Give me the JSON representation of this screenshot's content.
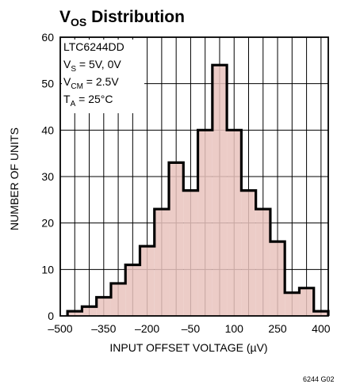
{
  "chart_data": {
    "type": "bar",
    "title": {
      "main": "V",
      "sub": "OS",
      "rest": " Distribution"
    },
    "xlabel": "INPUT OFFSET VOLTAGE (µV)",
    "ylabel": "NUMBER OF UNITS",
    "xlim": [
      -500,
      425
    ],
    "ylim": [
      0,
      60
    ],
    "grid": true,
    "x_ticks": [
      -500,
      -350,
      -200,
      -50,
      100,
      250,
      400
    ],
    "x_tick_labels": [
      "–500",
      "–350",
      "–200",
      "–50",
      "100",
      "250",
      "400"
    ],
    "y_ticks": [
      0,
      10,
      20,
      30,
      40,
      50,
      60
    ],
    "y_tick_labels": [
      "0",
      "10",
      "20",
      "30",
      "40",
      "50",
      "60"
    ],
    "bin_width": 50,
    "bins": [
      {
        "start": -475,
        "value": 1
      },
      {
        "start": -425,
        "value": 2
      },
      {
        "start": -375,
        "value": 4
      },
      {
        "start": -325,
        "value": 7
      },
      {
        "start": -275,
        "value": 11
      },
      {
        "start": -225,
        "value": 15
      },
      {
        "start": -175,
        "value": 23
      },
      {
        "start": -125,
        "value": 33
      },
      {
        "start": -75,
        "value": 27
      },
      {
        "start": -25,
        "value": 40
      },
      {
        "start": 25,
        "value": 54
      },
      {
        "start": 75,
        "value": 40
      },
      {
        "start": 125,
        "value": 27
      },
      {
        "start": 175,
        "value": 23
      },
      {
        "start": 225,
        "value": 16
      },
      {
        "start": 275,
        "value": 5
      },
      {
        "start": 325,
        "value": 6
      },
      {
        "start": 375,
        "value": 1
      }
    ],
    "annotation": [
      {
        "main": "LTC6244DD",
        "sub": "",
        "rest": ""
      },
      {
        "main": "V",
        "sub": "S",
        "rest": " = 5V, 0V"
      },
      {
        "main": "V",
        "sub": "CM",
        "rest": " = 2.5V"
      },
      {
        "main": "T",
        "sub": "A",
        "rest": " = 25°C"
      }
    ],
    "colors": {
      "fill": "#e9c3bd",
      "outline": "#000000",
      "grid": "#000000"
    }
  },
  "figure_code": "6244 G02"
}
